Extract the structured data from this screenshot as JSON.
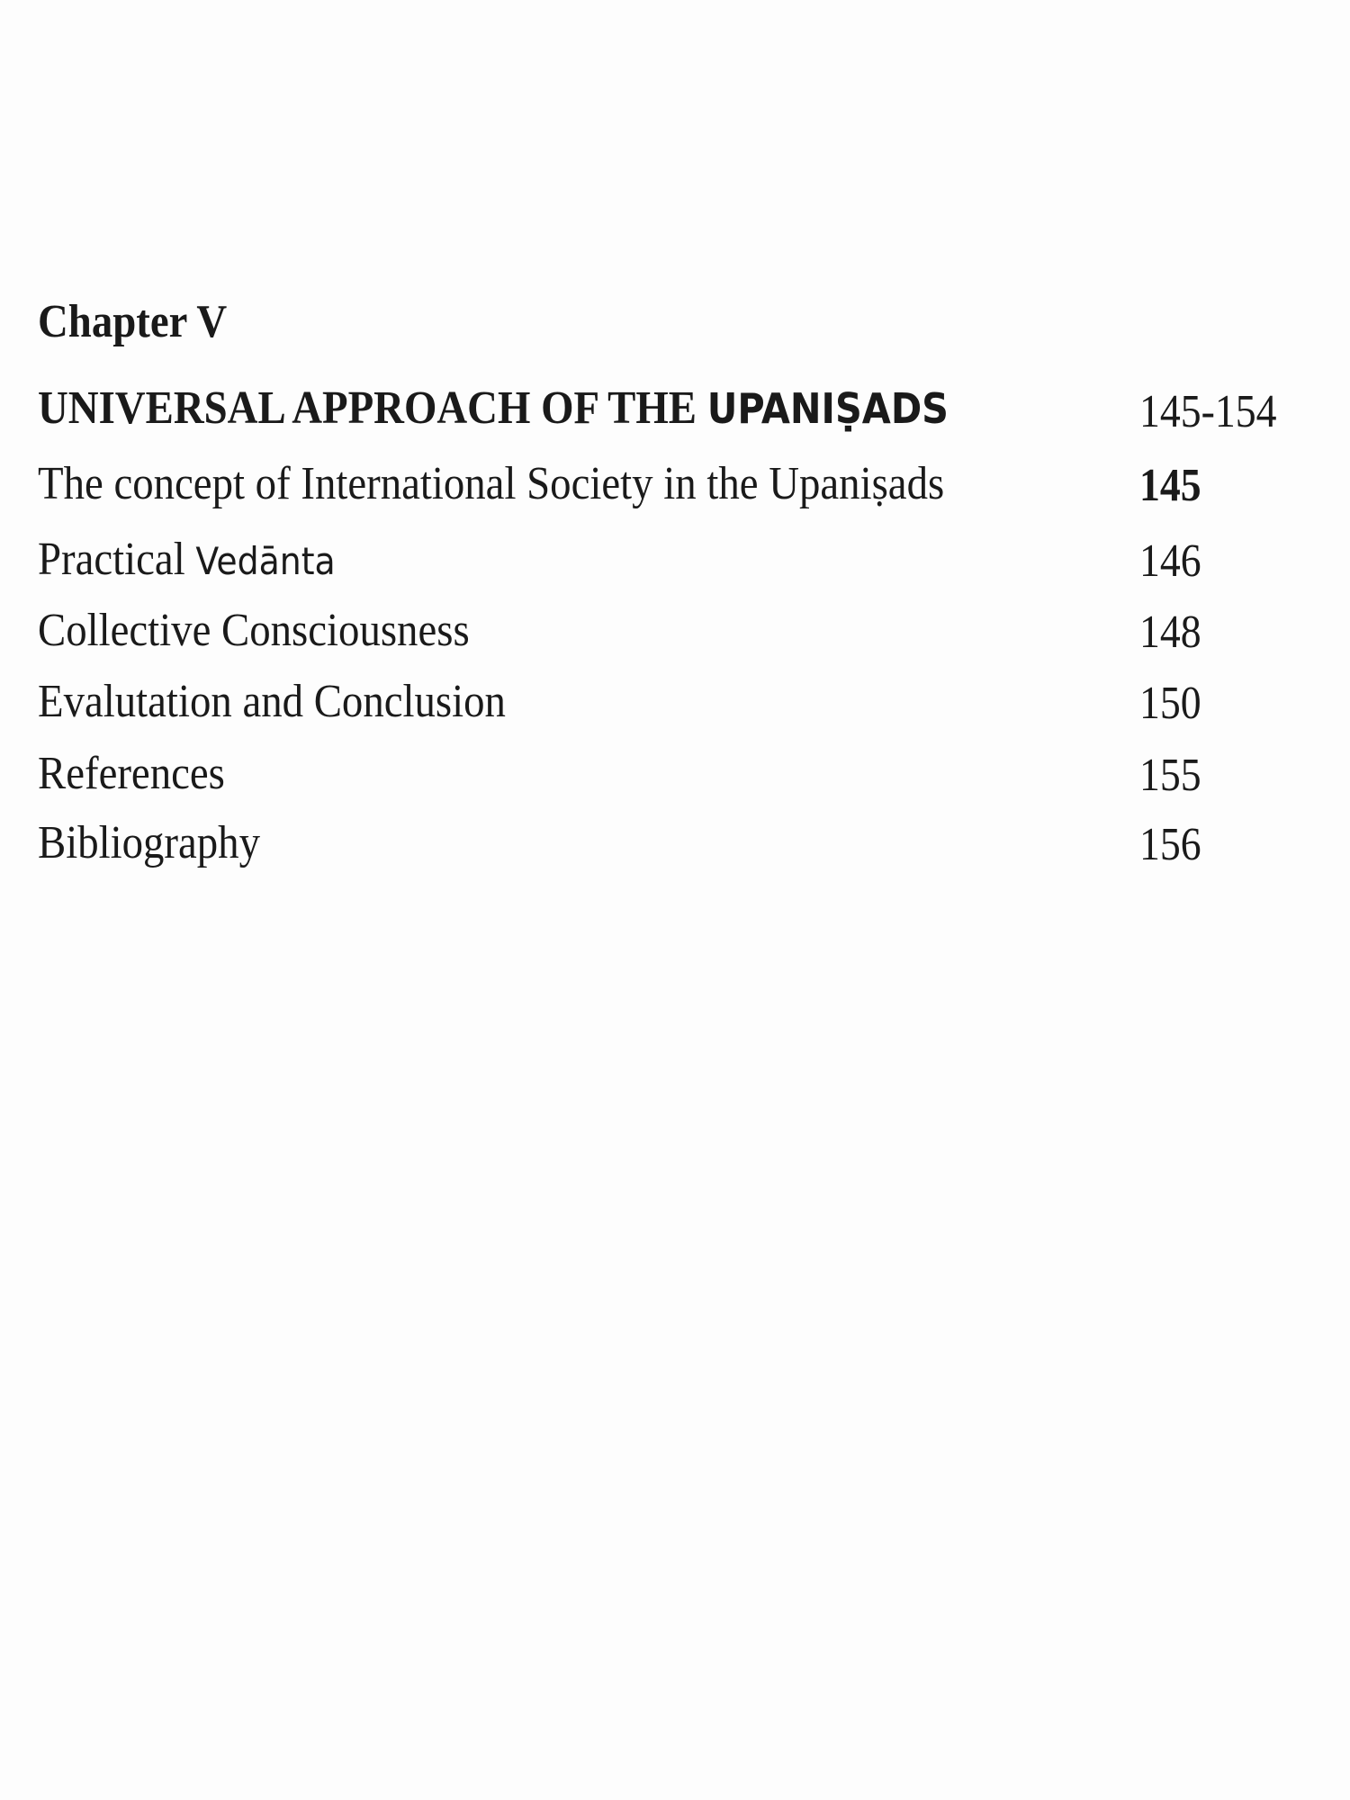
{
  "chapter_label": "Chapter V",
  "chapter_title": {
    "main": "UNIVERSAL APPROACH OF THE ",
    "emph": "UPANIṢADS",
    "pages": "145-154"
  },
  "entries": [
    {
      "title": "The concept of International Society in the Upaniṣads",
      "title_extra": "",
      "page": "145"
    },
    {
      "title": "Practical ",
      "title_extra": "Vedānta",
      "page": "146"
    },
    {
      "title": "Collective Consciousness",
      "title_extra": "",
      "page": "148"
    },
    {
      "title": "Evalutation and Conclusion",
      "title_extra": "",
      "page": "150"
    },
    {
      "title": "References",
      "title_extra": "",
      "page": "155"
    },
    {
      "title": "Bibliography",
      "title_extra": "",
      "page": "156"
    }
  ]
}
